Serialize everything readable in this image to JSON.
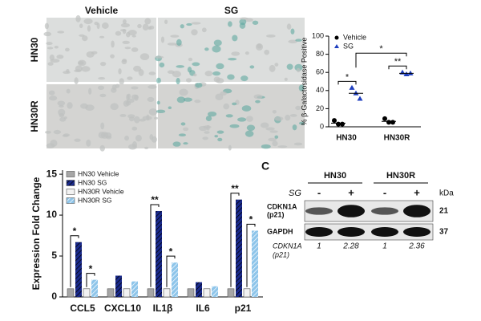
{
  "micrographs": {
    "columns": [
      "Vehicle",
      "SG"
    ],
    "rows": [
      "HN30",
      "HN30R"
    ]
  },
  "chart_data": [
    {
      "type": "dot_plot",
      "y_label": "% β-Galactosidase Positive",
      "categories": [
        "HN30",
        "HN30R"
      ],
      "series": [
        {
          "name": "Vehicle",
          "color": "#000000",
          "marker": "circle",
          "values": [
            [
              7,
              3,
              3
            ],
            [
              9,
              5,
              5
            ]
          ],
          "means": [
            4,
            6
          ]
        },
        {
          "name": "SG",
          "color": "#1f3fbf",
          "marker": "triangle",
          "values": [
            [
              43,
              37,
              31
            ],
            [
              60,
              58,
              59
            ]
          ],
          "means": [
            37,
            59
          ],
          "significance": [
            "*",
            "**"
          ]
        }
      ],
      "between_significance": "*",
      "ylim": [
        0,
        100
      ],
      "yticks": [
        0,
        20,
        40,
        60,
        80,
        100
      ],
      "legend": "upper left"
    },
    {
      "type": "bar",
      "y_label": "Expression Fold Change",
      "categories": [
        "CCL5",
        "CXCL10",
        "IL1β",
        "IL6",
        "p21"
      ],
      "series": [
        {
          "name": "HN30 Vehicle",
          "color": "#a6a6a6",
          "hatch": false,
          "values": [
            1,
            1,
            1,
            1,
            1
          ]
        },
        {
          "name": "HN30 SG",
          "color": "#1a2a8c",
          "hatch": true,
          "values": [
            6.7,
            2.6,
            10.5,
            1.8,
            11.9
          ],
          "significance": [
            "*",
            null,
            "**",
            null,
            "**"
          ]
        },
        {
          "name": "HN30R Vehicle",
          "color": "#f2f2f2",
          "hatch": false,
          "values": [
            1,
            1,
            1,
            1,
            1
          ]
        },
        {
          "name": "HN30R SG",
          "color": "#8ec5ea",
          "hatch": true,
          "values": [
            2.1,
            1.9,
            4.2,
            1.3,
            8.1
          ],
          "significance": [
            "*",
            null,
            "*",
            null,
            "*"
          ]
        }
      ],
      "ylim": [
        0,
        15.5
      ],
      "yticks": [
        0,
        5,
        10,
        15
      ],
      "legend": "upper left"
    }
  ],
  "western_blot": {
    "panel_label": "C",
    "groups": [
      "HN30",
      "HN30R"
    ],
    "treatment_label": "SG",
    "treatments": [
      "-",
      "+",
      "-",
      "+"
    ],
    "unit_label": "kDa",
    "bands": [
      {
        "name_lines": [
          "CDKN1A",
          "(p21)"
        ],
        "kda": 21
      },
      {
        "name_lines": [
          "GAPDH"
        ],
        "kda": 37
      }
    ],
    "quantification": {
      "label_lines": [
        "CDKN1A",
        "(p21)"
      ],
      "values": [
        1,
        2.28,
        1,
        2.36
      ]
    }
  }
}
